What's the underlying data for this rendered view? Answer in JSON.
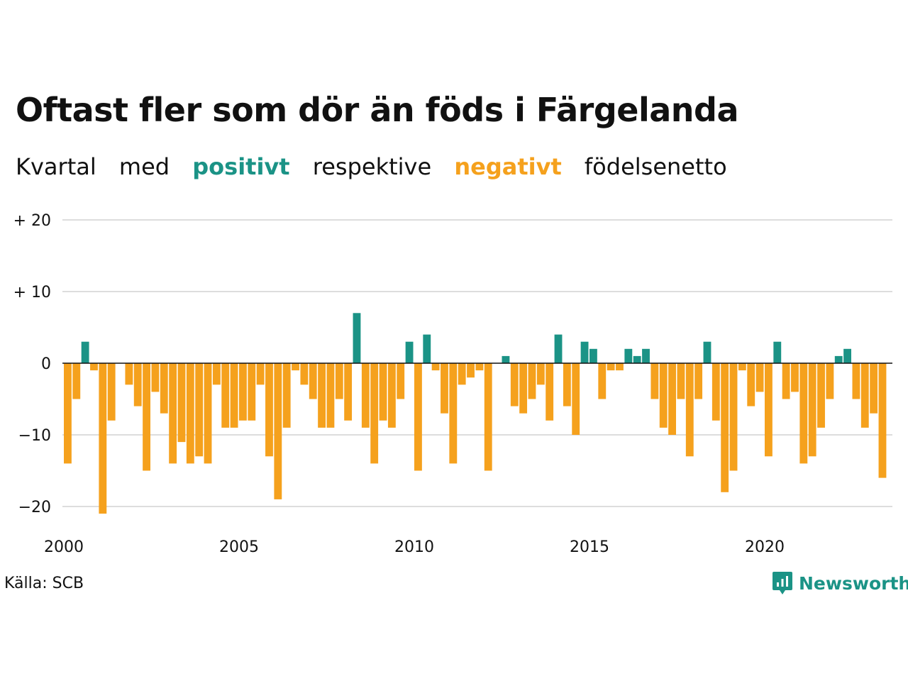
{
  "title": "Oftast fler som dör än föds i Färgelanda",
  "subtitle": {
    "w1": "Kvartal",
    "w2": "med",
    "positive": "positivt",
    "w3": "respektive",
    "negative": "negativt",
    "w4": "födelsenetto"
  },
  "colors": {
    "positive": "#1b9386",
    "negative": "#f5a11d",
    "grid": "#dddddd",
    "zero": "#111111"
  },
  "source": "Källa: SCB",
  "brand": {
    "name": "Newsworthy",
    "icon": "newsworthy-logo-icon"
  },
  "chart_data": {
    "type": "bar",
    "title": "Oftast fler som dör än föds i Färgelanda",
    "xlabel": "",
    "ylabel": "",
    "ylim": [
      -22,
      22
    ],
    "yticks": [
      {
        "value": 20,
        "label": "+ 20"
      },
      {
        "value": 10,
        "label": "+ 10"
      },
      {
        "value": 0,
        "label": "0"
      },
      {
        "value": -10,
        "label": "−10"
      },
      {
        "value": -20,
        "label": "−20"
      }
    ],
    "xticks": [
      {
        "value": 2000,
        "label": "2000"
      },
      {
        "value": 2005,
        "label": "2005"
      },
      {
        "value": 2010,
        "label": "2010"
      },
      {
        "value": 2015,
        "label": "2015"
      },
      {
        "value": 2020,
        "label": "2020"
      }
    ],
    "x_start": "2000 Q1",
    "x_frequency": "quarter",
    "values": [
      -14,
      -5,
      3,
      -1,
      -21,
      -8,
      0,
      -3,
      -6,
      -15,
      -4,
      -7,
      -14,
      -11,
      -14,
      -13,
      -14,
      -3,
      -9,
      -9,
      -8,
      -8,
      -3,
      -13,
      -19,
      -9,
      -1,
      -3,
      -5,
      -9,
      -9,
      -5,
      -8,
      7,
      -9,
      -14,
      -8,
      -9,
      -5,
      3,
      -15,
      4,
      -1,
      -7,
      -14,
      -3,
      -2,
      -1,
      -15,
      0,
      1,
      -6,
      -7,
      -5,
      -3,
      -8,
      4,
      -6,
      -10,
      3,
      2,
      -5,
      -1,
      -1,
      2,
      1,
      2,
      -5,
      -9,
      -10,
      -5,
      -13,
      -5,
      3,
      -8,
      -18,
      -15,
      -1,
      -6,
      -4,
      -13,
      3,
      -5,
      -4,
      -14,
      -13,
      -9,
      -5,
      1,
      2,
      -5,
      -9,
      -7,
      -16
    ],
    "grid": true,
    "legend": "none"
  }
}
